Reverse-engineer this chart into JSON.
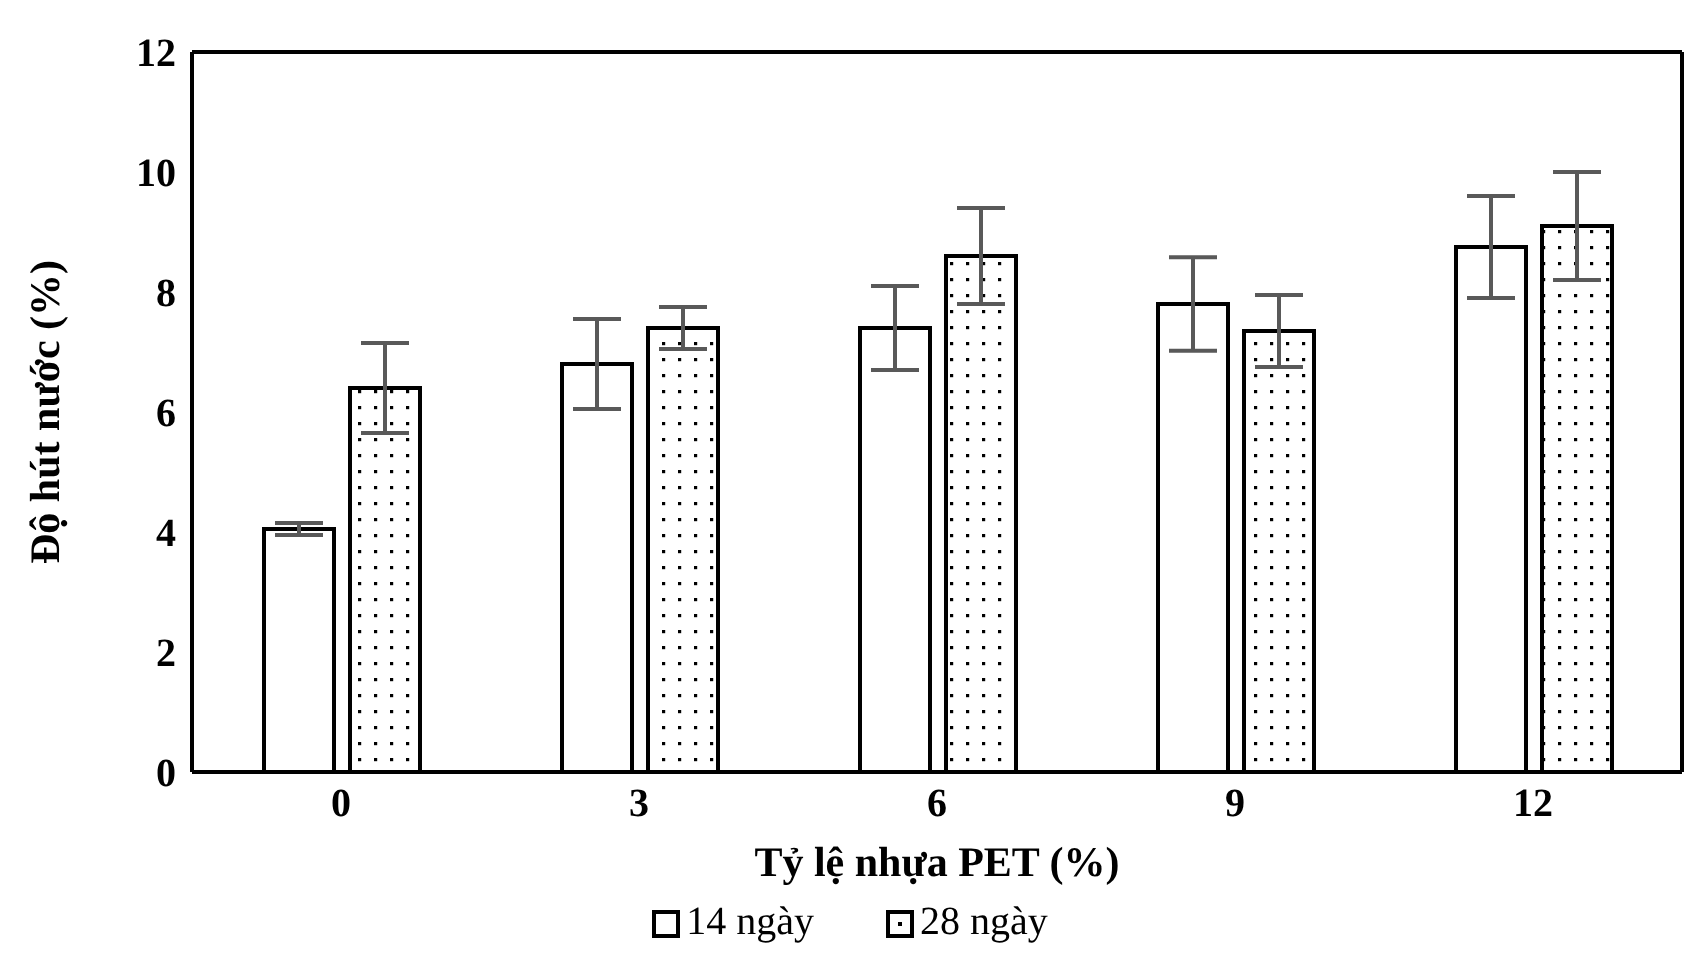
{
  "chart_data": {
    "type": "bar",
    "xlabel": "Tỷ lệ nhựa PET (%)",
    "ylabel": "Độ hút nước (%)",
    "categories": [
      "0",
      "3",
      "6",
      "9",
      "12"
    ],
    "series": [
      {
        "name": "14 ngày",
        "color": "#ffffff",
        "values": [
          4.05,
          6.8,
          7.4,
          7.8,
          8.75
        ],
        "errors": [
          0.1,
          0.75,
          0.7,
          0.78,
          0.85
        ]
      },
      {
        "name": "28 ngày",
        "color": "#ffffff",
        "values": [
          6.4,
          7.4,
          8.6,
          7.35,
          9.1
        ],
        "errors": [
          0.75,
          0.35,
          0.8,
          0.6,
          0.9
        ]
      }
    ],
    "ylim": [
      0,
      12
    ],
    "yticks": [
      0,
      2,
      4,
      6,
      8,
      10,
      12
    ],
    "legend": "bottom"
  }
}
